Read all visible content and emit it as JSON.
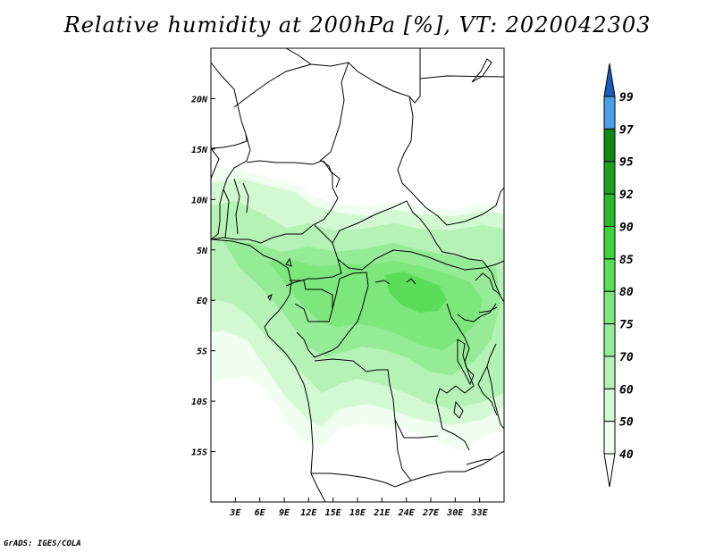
{
  "title": "Relative humidity at 200hPa [%], VT: 2020042303",
  "credit": "GrADS: IGES/COLA",
  "map": {
    "lon_range": [
      0,
      36
    ],
    "lat_range": [
      -20,
      25
    ],
    "lat_ticks": [
      {
        "value": 20,
        "label": "20N"
      },
      {
        "value": 15,
        "label": "15N"
      },
      {
        "value": 10,
        "label": "10N"
      },
      {
        "value": 5,
        "label": "5N"
      },
      {
        "value": 0,
        "label": "EQ"
      },
      {
        "value": -5,
        "label": "5S"
      },
      {
        "value": -10,
        "label": "10S"
      },
      {
        "value": -15,
        "label": "15S"
      }
    ],
    "lon_ticks": [
      {
        "value": 3,
        "label": "3E"
      },
      {
        "value": 6,
        "label": "6E"
      },
      {
        "value": 9,
        "label": "9E"
      },
      {
        "value": 12,
        "label": "12E"
      },
      {
        "value": 15,
        "label": "15E"
      },
      {
        "value": 18,
        "label": "18E"
      },
      {
        "value": 21,
        "label": "21E"
      },
      {
        "value": 24,
        "label": "24E"
      },
      {
        "value": 27,
        "label": "27E"
      },
      {
        "value": 30,
        "label": "30E"
      },
      {
        "value": 33,
        "label": "33E"
      }
    ]
  },
  "colorbar": {
    "levels": [
      "40",
      "50",
      "60",
      "70",
      "75",
      "80",
      "85",
      "90",
      "92",
      "95",
      "97",
      "99"
    ],
    "colors": [
      "#f0fff0",
      "#d2f9d2",
      "#b5f2b5",
      "#96ec96",
      "#7de77d",
      "#5ade5a",
      "#3ed23e",
      "#2cb82c",
      "#1e9f1e",
      "#118811",
      "#4b9fe8",
      "#2977d6",
      "#1b5cc0"
    ]
  }
}
